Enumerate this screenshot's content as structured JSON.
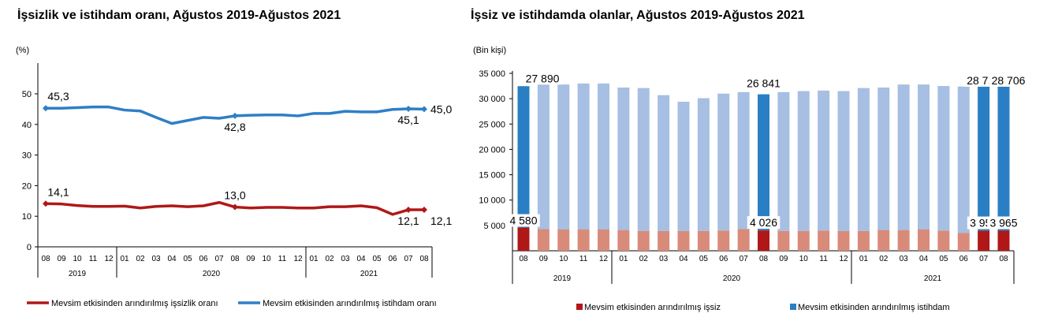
{
  "chart_data": [
    {
      "type": "line",
      "title": "İşsizlik ve istihdam oranı, Ağustos 2019-Ağustos 2021",
      "ylabel": "(%)",
      "ylim": [
        0,
        50
      ],
      "yticks": [
        "0",
        "10",
        "20",
        "30",
        "40",
        "50"
      ],
      "categories": [
        "08",
        "09",
        "10",
        "11",
        "12",
        "01",
        "02",
        "03",
        "04",
        "05",
        "06",
        "07",
        "08",
        "09",
        "10",
        "11",
        "12",
        "01",
        "02",
        "03",
        "04",
        "05",
        "06",
        "07",
        "08"
      ],
      "years": [
        {
          "label": "2019",
          "from": 0,
          "to": 4
        },
        {
          "label": "2020",
          "from": 5,
          "to": 16
        },
        {
          "label": "2021",
          "from": 17,
          "to": 24
        }
      ],
      "legend_position": "bottom",
      "series": [
        {
          "name": "Mevsim etkisinden arındırılmış işsizlik oranı",
          "color": "#b01818",
          "values": [
            14.1,
            14.0,
            13.5,
            13.2,
            13.2,
            13.3,
            12.7,
            13.2,
            13.4,
            13.1,
            13.4,
            14.5,
            13.0,
            12.7,
            12.9,
            12.9,
            12.7,
            12.7,
            13.1,
            13.1,
            13.4,
            12.8,
            10.6,
            12.1,
            12.1
          ],
          "labels": {
            "0": "14,1",
            "12": "13,0",
            "23": "12,1",
            "24": "12,1"
          }
        },
        {
          "name": "Mevsim etkisinden arındırılmış istihdam oranı",
          "color": "#2e7fc6",
          "values": [
            45.3,
            45.3,
            45.5,
            45.7,
            45.7,
            44.7,
            44.4,
            42.3,
            40.3,
            41.3,
            42.3,
            42.0,
            42.8,
            43.0,
            43.1,
            43.1,
            42.8,
            43.6,
            43.6,
            44.3,
            44.1,
            44.1,
            44.9,
            45.1,
            45.0
          ],
          "labels": {
            "0": "45,3",
            "12": "42,8",
            "23": "45,1",
            "24": "45,0"
          }
        }
      ]
    },
    {
      "type": "bar",
      "stacked": true,
      "title": "İşsiz ve istihdamda olanlar, Ağustos 2019-Ağustos 2021",
      "ylabel": "(Bin kişi)",
      "ylim": [
        0,
        35000
      ],
      "yticks": [
        "5 000",
        "10 000",
        "15 000",
        "20 000",
        "25 000",
        "30 000",
        "35 000"
      ],
      "categories": [
        "08",
        "09",
        "10",
        "11",
        "12",
        "01",
        "02",
        "03",
        "04",
        "05",
        "06",
        "07",
        "08",
        "09",
        "10",
        "11",
        "12",
        "01",
        "02",
        "03",
        "04",
        "05",
        "06",
        "07",
        "08"
      ],
      "years": [
        {
          "label": "2019",
          "from": 0,
          "to": 4
        },
        {
          "label": "2020",
          "from": 5,
          "to": 16
        },
        {
          "label": "2021",
          "from": 17,
          "to": 24
        }
      ],
      "highlighted": [
        0,
        12,
        23,
        24
      ],
      "legend_position": "bottom",
      "series": [
        {
          "name": "Mevsim etkisinden arındırılmış işsiz",
          "color": "#b01818",
          "light_color": "#d98b7a",
          "values": [
            4580,
            4300,
            4200,
            4200,
            4200,
            4100,
            3900,
            3900,
            3900,
            3900,
            4000,
            4300,
            4026,
            3900,
            3900,
            4000,
            3900,
            3900,
            4100,
            4100,
            4200,
            4000,
            3500,
            3954,
            3965
          ],
          "labels": {
            "0": "4 580",
            "12": "4 026",
            "23": "3 954",
            "24": "3 965"
          }
        },
        {
          "name": "Mevsim etkisinden arındırılmış istihdam",
          "color": "#2a7fc4",
          "light_color": "#a6bfe3",
          "values": [
            27890,
            28500,
            28600,
            28800,
            28800,
            28100,
            28200,
            26800,
            25500,
            26200,
            27000,
            27000,
            26841,
            27400,
            27600,
            27600,
            27600,
            28200,
            28100,
            28700,
            28600,
            28500,
            28900,
            28720,
            28706
          ],
          "labels": {
            "0": "27 890",
            "12": "26 841",
            "23": "28 720",
            "24": "28 706"
          }
        }
      ]
    }
  ]
}
